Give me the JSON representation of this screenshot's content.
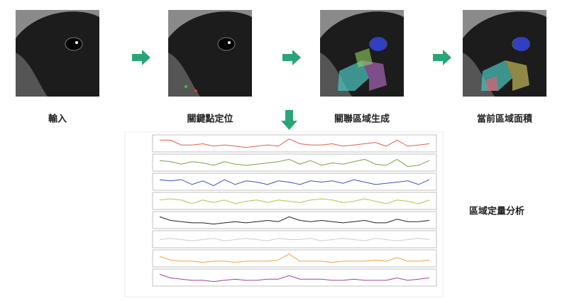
{
  "steps": [
    {
      "label": "輸入"
    },
    {
      "label": "關鍵點定位"
    },
    {
      "label": "關聯區域生成"
    },
    {
      "label": "當前區域面積"
    }
  ],
  "analysis": {
    "label": "區域定量分析",
    "traces": [
      {
        "color": "#e0604f",
        "values": [
          8,
          8,
          4,
          4,
          5,
          3,
          4,
          3,
          2,
          3,
          4,
          3,
          9,
          5,
          4,
          4,
          5,
          3,
          4,
          5,
          6,
          3,
          8,
          3,
          4,
          5
        ]
      },
      {
        "color": "#7aa040",
        "values": [
          7,
          6,
          4,
          6,
          5,
          3,
          6,
          4,
          3,
          4,
          5,
          6,
          8,
          4,
          7,
          3,
          5,
          4,
          6,
          8,
          4,
          3,
          8,
          2,
          3,
          7
        ]
      },
      {
        "color": "#4050c0",
        "values": [
          7,
          6,
          7,
          3,
          6,
          2,
          7,
          3,
          6,
          5,
          3,
          6,
          5,
          3,
          6,
          5,
          6,
          4,
          7,
          5,
          3,
          4,
          5,
          6,
          3,
          7
        ]
      },
      {
        "color": "#b8c040",
        "values": [
          6,
          7,
          6,
          3,
          6,
          4,
          6,
          3,
          5,
          6,
          4,
          6,
          5,
          4,
          6,
          7,
          6,
          4,
          5,
          7,
          5,
          3,
          6,
          5,
          3,
          6
        ]
      },
      {
        "color": "#222222",
        "values": [
          8,
          5,
          4,
          3,
          3,
          2,
          3,
          4,
          3,
          4,
          5,
          4,
          8,
          5,
          4,
          5,
          4,
          3,
          4,
          5,
          3,
          3,
          6,
          4,
          4,
          5
        ]
      },
      {
        "color": "#cccccc",
        "values": [
          5,
          6,
          5,
          4,
          5,
          6,
          4,
          5,
          6,
          5,
          4,
          6,
          5,
          5,
          6,
          4,
          5,
          6,
          5,
          4,
          6,
          5,
          4,
          5,
          6,
          5
        ]
      },
      {
        "color": "#f0a040",
        "values": [
          7,
          4,
          3,
          3,
          2,
          3,
          3,
          2,
          3,
          3,
          3,
          4,
          9,
          3,
          3,
          3,
          2,
          3,
          3,
          3,
          4,
          3,
          6,
          3,
          3,
          4
        ]
      },
      {
        "color": "#a040a0",
        "values": [
          8,
          5,
          4,
          3,
          3,
          2,
          3,
          4,
          3,
          3,
          4,
          4,
          7,
          4,
          4,
          4,
          3,
          3,
          4,
          3,
          3,
          3,
          5,
          3,
          4,
          5
        ]
      }
    ]
  }
}
